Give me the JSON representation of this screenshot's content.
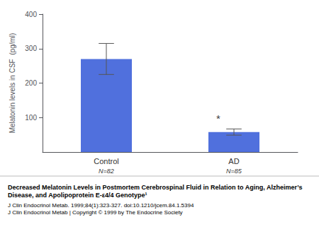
{
  "chart_data": {
    "type": "bar",
    "title": "Decreased Melatonin Levels in Postmortem Cerebrospinal Fluid in Relation to Aging, Alzheimer’s Disease, and Apolipoprotein E-ε4/4 Genotype¹",
    "subtitle": [
      "J Clin Endocrinol Metab. 1999;84(1):323-327. doi:10.1210/jcem.84.1.5394",
      "J Clin Endocrinol Metab | Copyright © 1999 by The Endocrine Society"
    ],
    "categories": [
      "Control",
      "AD"
    ],
    "n_labels": [
      "N=82",
      "N=85"
    ],
    "values": [
      270,
      58
    ],
    "errors": [
      45,
      9
    ],
    "ylabel": "Melatonin levels in CSF  (pg/ml)",
    "ylim": [
      0,
      400
    ],
    "yticks": [
      100,
      200,
      300,
      400
    ],
    "annotations": [
      {
        "text": "*",
        "category": "AD"
      }
    ],
    "grid": false
  }
}
